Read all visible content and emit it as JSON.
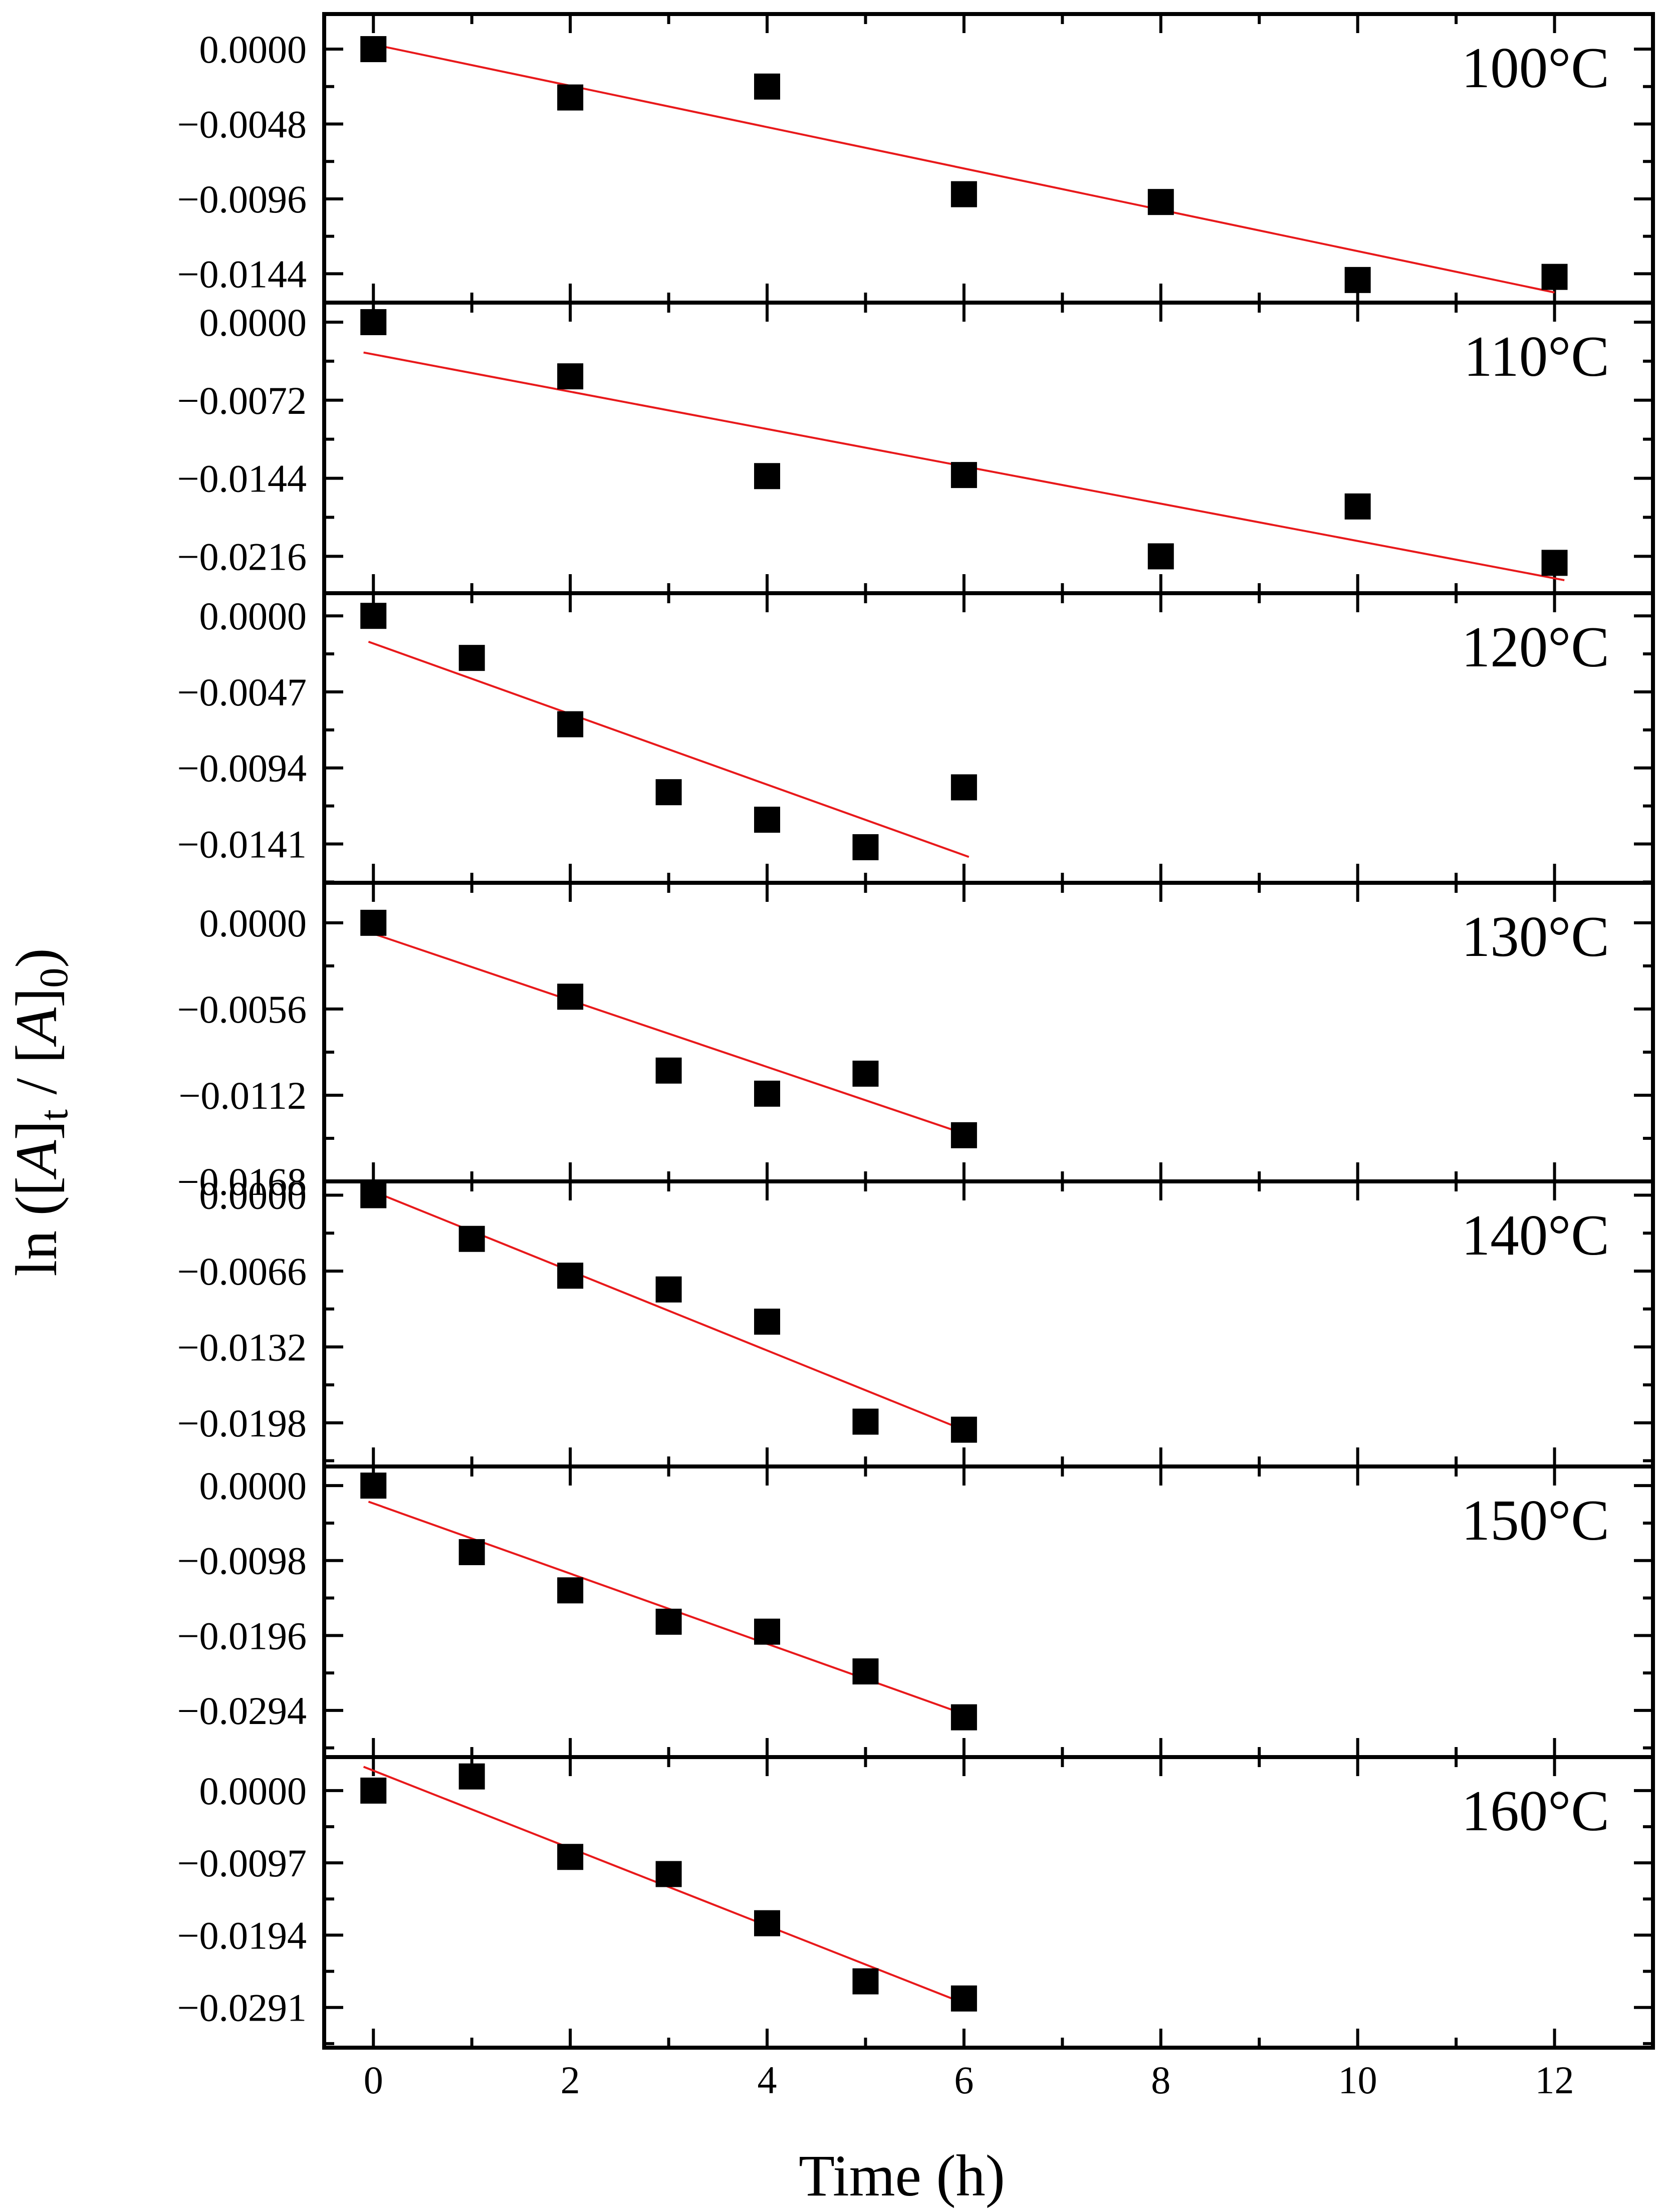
{
  "chart_data": {
    "type": "scatter",
    "xlabel": "Time (h)",
    "ylabel": {
      "prefix": "ln ([",
      "sym1": "A",
      "sub1": "t",
      "mid": " / [",
      "sym2": "A",
      "sub2": "0",
      "suffix": ")"
    },
    "xlim": [
      -0.5,
      13
    ],
    "xticks": [
      0,
      2,
      4,
      6,
      8,
      10,
      12
    ],
    "xtick_labels": [
      "0",
      "2",
      "4",
      "6",
      "8",
      "10",
      "12"
    ],
    "colors": {
      "marker": "#000000",
      "fit": "#e8191b"
    },
    "panels": [
      {
        "label": "100°C",
        "ylim": [
          -0.01625,
          0.00225
        ],
        "yticks": [
          0.0,
          -0.0048,
          -0.0096,
          -0.0144
        ],
        "ytick_labels": [
          "0.0000",
          "−0.0048",
          "−0.0096",
          "−0.0144"
        ],
        "x": [
          0,
          2,
          4,
          6,
          8,
          10,
          12
        ],
        "y": [
          0.0,
          -0.0031,
          -0.0024,
          -0.0093,
          -0.0098,
          -0.0148,
          -0.0146
        ],
        "fit": {
          "x": [
            0,
            12
          ],
          "y": [
            0.0003,
            -0.0156
          ]
        }
      },
      {
        "label": "110°C",
        "ylim": [
          -0.025,
          0.0018
        ],
        "yticks": [
          0.0,
          -0.0072,
          -0.0144,
          -0.0216
        ],
        "ytick_labels": [
          "0.0000",
          "−0.0072",
          "−0.0144",
          "−0.0216"
        ],
        "x": [
          0,
          2,
          4,
          6,
          8,
          10,
          12
        ],
        "y": [
          0.0,
          -0.005,
          -0.0142,
          -0.0141,
          -0.0216,
          -0.017,
          -0.0222
        ],
        "fit": {
          "x": [
            -0.1,
            12.1
          ],
          "y": [
            -0.0028,
            -0.0238
          ]
        }
      },
      {
        "label": "120°C",
        "ylim": [
          -0.0165,
          0.0014
        ],
        "yticks": [
          0.0,
          -0.0047,
          -0.0094,
          -0.0141
        ],
        "ytick_labels": [
          "0.0000",
          "−0.0047",
          "−0.0094",
          "−0.0141"
        ],
        "x": [
          0,
          1,
          2,
          3,
          4,
          5,
          6
        ],
        "y": [
          0.0,
          -0.0026,
          -0.0067,
          -0.0109,
          -0.0126,
          -0.0143,
          -0.0106
        ],
        "fit": {
          "x": [
            -0.05,
            6.05
          ],
          "y": [
            -0.0016,
            -0.0149
          ]
        }
      },
      {
        "label": "130°C",
        "ylim": [
          -0.0168,
          0.0026
        ],
        "yticks": [
          0.0,
          -0.0056,
          -0.0112,
          -0.0168
        ],
        "ytick_labels": [
          "0.0000",
          "−0.0056",
          "−0.0112",
          "−0.0168"
        ],
        "x": [
          0,
          2,
          3,
          4,
          5,
          6
        ],
        "y": [
          0.0,
          -0.0048,
          -0.0096,
          -0.0111,
          -0.0098,
          -0.0138
        ],
        "fit": {
          "x": [
            -0.05,
            6.05
          ],
          "y": [
            -0.0006,
            -0.0138
          ]
        }
      },
      {
        "label": "140°C",
        "ylim": [
          -0.0236,
          0.0012
        ],
        "yticks": [
          0.0,
          -0.0066,
          -0.0132,
          -0.0198
        ],
        "ytick_labels": [
          "0.0000",
          "−0.0066",
          "−0.0132",
          "−0.0198"
        ],
        "x": [
          0,
          1,
          2,
          3,
          4,
          5,
          6
        ],
        "y": [
          0.0,
          -0.0038,
          -0.007,
          -0.0082,
          -0.011,
          -0.0197,
          -0.0204
        ],
        "fit": {
          "x": [
            -0.05,
            6.05
          ],
          "y": [
            0.0005,
            -0.0206
          ]
        }
      },
      {
        "label": "150°C",
        "ylim": [
          -0.0355,
          0.0025
        ],
        "yticks": [
          0.0,
          -0.0098,
          -0.0196,
          -0.0294
        ],
        "ytick_labels": [
          "0.0000",
          "−0.0098",
          "−0.0196",
          "−0.0294"
        ],
        "x": [
          0,
          1,
          2,
          3,
          4,
          5,
          6
        ],
        "y": [
          0.0,
          -0.0087,
          -0.0137,
          -0.0178,
          -0.0191,
          -0.0243,
          -0.0303
        ],
        "fit": {
          "x": [
            -0.05,
            6.05
          ],
          "y": [
            -0.0021,
            -0.0301
          ]
        }
      },
      {
        "label": "160°C",
        "ylim": [
          -0.0345,
          0.0045
        ],
        "yticks": [
          0.0,
          -0.0097,
          -0.0194,
          -0.0291
        ],
        "ytick_labels": [
          "0.0000",
          "−0.0097",
          "−0.0194",
          "−0.0291"
        ],
        "x": [
          0,
          1,
          2,
          3,
          4,
          5,
          6
        ],
        "y": [
          0.0,
          0.0019,
          -0.0089,
          -0.0112,
          -0.0178,
          -0.0256,
          -0.0279
        ],
        "fit": {
          "x": [
            -0.1,
            6.05
          ],
          "y": [
            0.0032,
            -0.0288
          ]
        }
      }
    ]
  }
}
